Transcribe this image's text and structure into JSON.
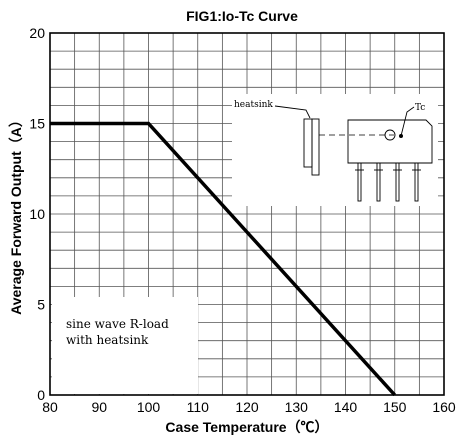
{
  "chart_data": {
    "type": "line",
    "title": "FIG1:Io-Tc Curve",
    "xlabel": "Case Temperature（℃）",
    "ylabel": "Average Forward Output（A）",
    "xlim": [
      80,
      160
    ],
    "ylim": [
      0,
      20
    ],
    "x_ticks": [
      "80",
      "90",
      "100",
      "110",
      "120",
      "130",
      "140",
      "150",
      "160"
    ],
    "y_ticks": [
      "0",
      "5",
      "10",
      "15",
      "20"
    ],
    "x_minor_step": 5,
    "y_minor_step": 1,
    "grid": true,
    "series": [
      {
        "x": [
          80,
          100,
          150
        ],
        "y": [
          15,
          15,
          0
        ]
      }
    ],
    "annotation": {
      "line1": "sine wave R-load",
      "line2": "with heatsink"
    },
    "inset": {
      "heatsink_label": "heatsink",
      "tc_label": "Tc"
    }
  }
}
